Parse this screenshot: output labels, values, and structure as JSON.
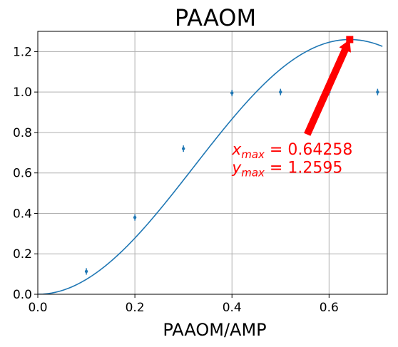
{
  "chart_data": {
    "type": "scatter",
    "title": "PAAOM",
    "xlabel": "PAAOM/AMP",
    "ylabel": "",
    "xlim": [
      0,
      0.72
    ],
    "ylim": [
      0,
      1.3
    ],
    "x_ticks": [
      "0.0",
      "0.2",
      "0.4",
      "0.6"
    ],
    "x_tick_values": [
      0,
      0.2,
      0.4,
      0.6
    ],
    "y_ticks": [
      "0.0",
      "0.2",
      "0.4",
      "0.6",
      "0.8",
      "1.0",
      "1.2"
    ],
    "y_tick_values": [
      0,
      0.2,
      0.4,
      0.6,
      0.8,
      1.0,
      1.2
    ],
    "grid": true,
    "series": [
      {
        "kind": "errorbar",
        "color": "#1f77b4",
        "x": [
          0.1,
          0.2,
          0.3,
          0.4,
          0.5,
          0.6,
          0.7
        ],
        "y": [
          0.113,
          0.38,
          0.72,
          0.995,
          1.0,
          1.0,
          1.0
        ],
        "yerr": [
          0.016,
          0.016,
          0.016,
          0.016,
          0.016,
          0.016,
          0.016
        ]
      },
      {
        "kind": "fit",
        "color": "#1f77b4",
        "x_range": [
          0,
          0.71
        ],
        "amplitude": 1.2595,
        "x_max": 0.64258
      }
    ],
    "annotation": {
      "color": "#ff0000",
      "marker_x": 0.64258,
      "marker_y": 1.2595,
      "arrow_from": [
        0.555,
        0.79
      ],
      "x_label": "x",
      "y_label": "y",
      "subscript": "max",
      "x_value": "0.64258",
      "y_value": "1.2595",
      "text_x": 0.4,
      "text_y_line1": 0.69,
      "text_y_line2": 0.6
    }
  }
}
